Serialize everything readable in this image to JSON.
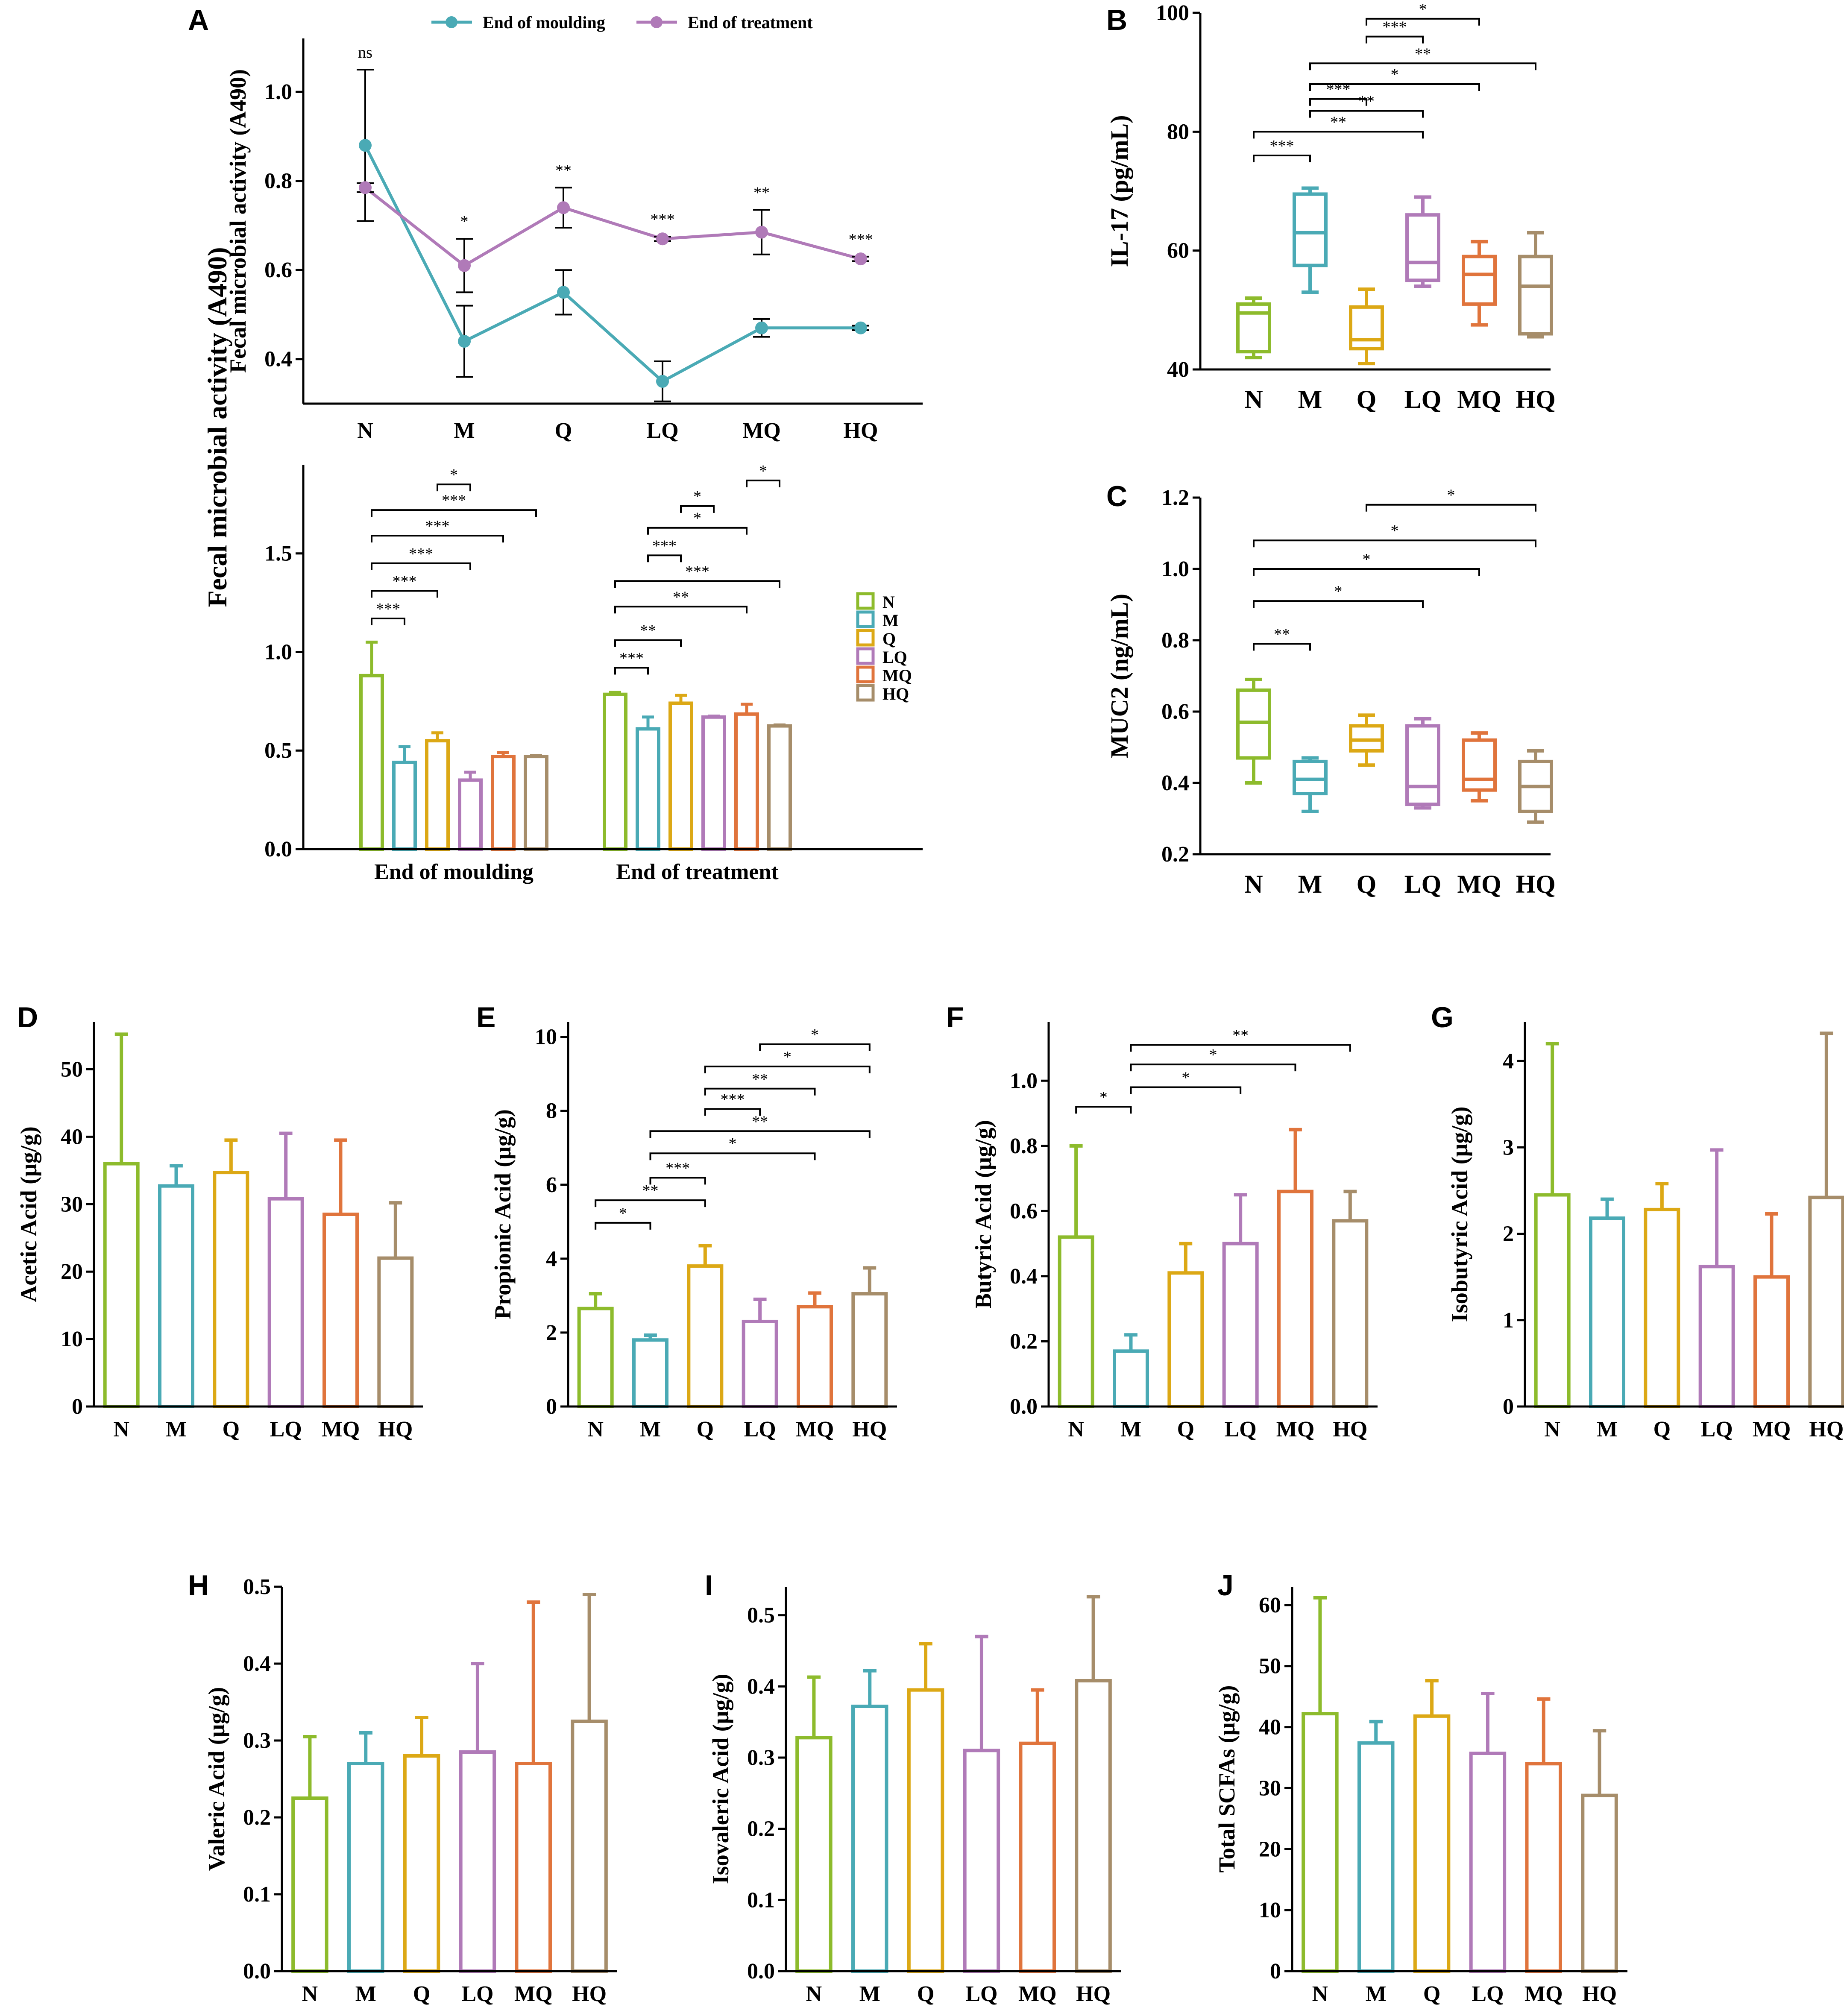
{
  "colors": {
    "N": "#8dbb2c",
    "M": "#4aaab5",
    "Q": "#dca815",
    "LQ": "#b07ab8",
    "MQ": "#e0743c",
    "HQ": "#a68d6a",
    "moulding": "#4aaab5",
    "treatment": "#b07ab8",
    "axis": "#000000"
  },
  "chart_data": [
    {
      "id": "A-line",
      "panel": "A",
      "type": "line",
      "categories": [
        "N",
        "M",
        "Q",
        "LQ",
        "MQ",
        "HQ"
      ],
      "ylabel": "Fecal microbial activity (A490)",
      "yticks": [
        "0.4",
        "0.6",
        "0.8",
        "1.0"
      ],
      "ylim": [
        0.3,
        1.12
      ],
      "legend": [
        "End of moulding",
        "End of treatment"
      ],
      "series": [
        {
          "name": "End of moulding",
          "color": "moulding",
          "values": [
            0.88,
            0.44,
            0.55,
            0.35,
            0.47,
            0.47
          ],
          "err": [
            0.17,
            0.08,
            0.05,
            0.045,
            0.02,
            0.005
          ]
        },
        {
          "name": "End of treatment",
          "color": "treatment",
          "values": [
            0.785,
            0.61,
            0.74,
            0.67,
            0.685,
            0.625
          ],
          "err": [
            0.01,
            0.06,
            0.045,
            0.005,
            0.05,
            0.005
          ]
        }
      ],
      "annotations": [
        "ns",
        "*",
        "**",
        "***",
        "**",
        "***"
      ]
    },
    {
      "id": "A-bar",
      "panel": "",
      "type": "bar",
      "groups": [
        "End of moulding",
        "End of treatment"
      ],
      "categories": [
        "N",
        "M",
        "Q",
        "LQ",
        "MQ",
        "HQ"
      ],
      "yticks": [
        "0.0",
        "0.5",
        "1.0",
        "1.5"
      ],
      "ylim": [
        0,
        1.95
      ],
      "series": [
        {
          "group": "End of moulding",
          "values": [
            0.88,
            0.44,
            0.55,
            0.35,
            0.47,
            0.47
          ],
          "err": [
            0.17,
            0.08,
            0.04,
            0.04,
            0.02,
            0.005
          ]
        },
        {
          "group": "End of treatment",
          "values": [
            0.785,
            0.61,
            0.74,
            0.67,
            0.685,
            0.625
          ],
          "err": [
            0.01,
            0.06,
            0.04,
            0.005,
            0.05,
            0.005
          ]
        }
      ],
      "legend": [
        "N",
        "M",
        "Q",
        "LQ",
        "MQ",
        "HQ"
      ],
      "brackets": [
        {
          "g": 0,
          "a": "N",
          "b": "M",
          "level": 1.17,
          "label": "***"
        },
        {
          "g": 0,
          "a": "N",
          "b": "Q",
          "level": 1.31,
          "label": "***"
        },
        {
          "g": 0,
          "a": "N",
          "b": "LQ",
          "level": 1.45,
          "label": "***"
        },
        {
          "g": 0,
          "a": "N",
          "b": "MQ",
          "level": 1.59,
          "label": "***"
        },
        {
          "g": 0,
          "a": "N",
          "b": "HQ",
          "level": 1.72,
          "label": "***"
        },
        {
          "g": 0,
          "a": "Q",
          "b": "LQ",
          "level": 1.85,
          "label": "*"
        },
        {
          "g": 1,
          "a": "N",
          "b": "M",
          "level": 0.92,
          "label": "***"
        },
        {
          "g": 1,
          "a": "N",
          "b": "Q",
          "level": 1.06,
          "label": "**"
        },
        {
          "g": 1,
          "a": "N",
          "b": "MQ",
          "level": 1.23,
          "label": "**"
        },
        {
          "g": 1,
          "a": "N",
          "b": "HQ",
          "level": 1.36,
          "label": "***"
        },
        {
          "g": 1,
          "a": "M",
          "b": "Q",
          "level": 1.49,
          "label": "***"
        },
        {
          "g": 1,
          "a": "M",
          "b": "MQ",
          "level": 1.63,
          "label": "*"
        },
        {
          "g": 1,
          "a": "Q",
          "b": "LQ",
          "level": 1.74,
          "label": "*"
        },
        {
          "g": 1,
          "a": "MQ",
          "b": "HQ",
          "level": 1.87,
          "label": "*"
        }
      ]
    },
    {
      "id": "B",
      "panel": "B",
      "type": "box",
      "categories": [
        "N",
        "M",
        "Q",
        "LQ",
        "MQ",
        "HQ"
      ],
      "ylabel": "IL-17 (pg/mL)",
      "yticks": [
        "40",
        "60",
        "80",
        "100"
      ],
      "ylim": [
        40,
        100
      ],
      "boxes": [
        [
          42,
          43,
          49.5,
          51,
          52
        ],
        [
          53,
          57.5,
          63,
          69.5,
          70.5
        ],
        [
          41,
          43.5,
          45,
          50.5,
          53.5
        ],
        [
          54,
          55,
          58,
          66,
          69
        ],
        [
          47.5,
          51,
          56,
          59,
          61.5
        ],
        [
          45.5,
          46,
          54,
          59,
          63
        ]
      ],
      "brackets": [
        {
          "a": "N",
          "b": "M",
          "level": 76,
          "label": "***"
        },
        {
          "a": "N",
          "b": "LQ",
          "level": 80,
          "label": "**"
        },
        {
          "a": "M",
          "b": "LQ",
          "level": 83.5,
          "label": "**"
        },
        {
          "a": "M",
          "b": "Q",
          "level": 85.5,
          "label": "***"
        },
        {
          "a": "M",
          "b": "MQ",
          "level": 88,
          "label": "*"
        },
        {
          "a": "M",
          "b": "HQ",
          "level": 91.5,
          "label": "**"
        },
        {
          "a": "Q",
          "b": "LQ",
          "level": 96,
          "label": "***"
        },
        {
          "a": "Q",
          "b": "MQ",
          "level": 99,
          "label": "*"
        }
      ]
    },
    {
      "id": "C",
      "panel": "C",
      "type": "box",
      "categories": [
        "N",
        "M",
        "Q",
        "LQ",
        "MQ",
        "HQ"
      ],
      "ylabel": "MUC2 (ng/mL)",
      "yticks": [
        "0.2",
        "0.4",
        "0.6",
        "0.8",
        "1.0",
        "1.2"
      ],
      "ylim": [
        0.2,
        1.2
      ],
      "boxes": [
        [
          0.4,
          0.47,
          0.57,
          0.66,
          0.69
        ],
        [
          0.32,
          0.37,
          0.41,
          0.46,
          0.47
        ],
        [
          0.45,
          0.49,
          0.52,
          0.56,
          0.59
        ],
        [
          0.33,
          0.34,
          0.39,
          0.56,
          0.58
        ],
        [
          0.35,
          0.38,
          0.41,
          0.52,
          0.54
        ],
        [
          0.29,
          0.32,
          0.39,
          0.46,
          0.49
        ]
      ],
      "brackets": [
        {
          "a": "N",
          "b": "M",
          "level": 0.79,
          "label": "**"
        },
        {
          "a": "N",
          "b": "LQ",
          "level": 0.91,
          "label": "*"
        },
        {
          "a": "N",
          "b": "MQ",
          "level": 1.0,
          "label": "*"
        },
        {
          "a": "N",
          "b": "HQ",
          "level": 1.08,
          "label": "*"
        },
        {
          "a": "Q",
          "b": "HQ",
          "level": 1.18,
          "label": "*"
        }
      ]
    },
    {
      "id": "D",
      "panel": "D",
      "type": "bar",
      "categories": [
        "N",
        "M",
        "Q",
        "LQ",
        "MQ",
        "HQ"
      ],
      "ylabel": "Acetic Acid (μg/g)",
      "yticks": [
        "0",
        "10",
        "20",
        "30",
        "40",
        "50"
      ],
      "ylim": [
        0,
        57
      ],
      "values": [
        36,
        32.7,
        34.7,
        30.8,
        28.5,
        22
      ],
      "err": [
        19.2,
        3,
        4.8,
        9.7,
        11,
        8.2
      ],
      "brackets": []
    },
    {
      "id": "E",
      "panel": "E",
      "type": "bar",
      "categories": [
        "N",
        "M",
        "Q",
        "LQ",
        "MQ",
        "HQ"
      ],
      "ylabel": "Propionic Acid (μg/g)",
      "yticks": [
        "0",
        "2",
        "4",
        "6",
        "8",
        "10"
      ],
      "ylim": [
        0,
        10.4
      ],
      "values": [
        2.65,
        1.8,
        3.8,
        2.3,
        2.7,
        3.05
      ],
      "err": [
        0.4,
        0.13,
        0.55,
        0.6,
        0.37,
        0.7
      ],
      "brackets": [
        {
          "a": "N",
          "b": "M",
          "level": 4.97,
          "label": "*"
        },
        {
          "a": "N",
          "b": "Q",
          "level": 5.58,
          "label": "**"
        },
        {
          "a": "M",
          "b": "Q",
          "level": 6.19,
          "label": "***"
        },
        {
          "a": "M",
          "b": "MQ",
          "level": 6.85,
          "label": "*"
        },
        {
          "a": "M",
          "b": "HQ",
          "level": 7.45,
          "label": "**"
        },
        {
          "a": "Q",
          "b": "LQ",
          "level": 8.05,
          "label": "***"
        },
        {
          "a": "Q",
          "b": "MQ",
          "level": 8.6,
          "label": "**"
        },
        {
          "a": "Q",
          "b": "HQ",
          "level": 9.2,
          "label": "*"
        },
        {
          "a": "LQ",
          "b": "HQ",
          "level": 9.8,
          "label": "*"
        }
      ]
    },
    {
      "id": "F",
      "panel": "F",
      "type": "bar",
      "categories": [
        "N",
        "M",
        "Q",
        "LQ",
        "MQ",
        "HQ"
      ],
      "ylabel": "Butyric Acid (μg/g)",
      "yticks": [
        "0.0",
        "0.2",
        "0.4",
        "0.6",
        "0.8",
        "1.0"
      ],
      "ylim": [
        0,
        1.18
      ],
      "values": [
        0.52,
        0.17,
        0.41,
        0.5,
        0.66,
        0.57
      ],
      "err": [
        0.28,
        0.05,
        0.09,
        0.15,
        0.19,
        0.09
      ],
      "brackets": [
        {
          "a": "N",
          "b": "M",
          "level": 0.92,
          "label": "*"
        },
        {
          "a": "M",
          "b": "LQ",
          "level": 0.98,
          "label": "*"
        },
        {
          "a": "M",
          "b": "MQ",
          "level": 1.05,
          "label": "*"
        },
        {
          "a": "M",
          "b": "HQ",
          "level": 1.11,
          "label": "**"
        }
      ]
    },
    {
      "id": "G",
      "panel": "G",
      "type": "bar",
      "categories": [
        "N",
        "M",
        "Q",
        "LQ",
        "MQ",
        "HQ"
      ],
      "ylabel": "Isobutyric Acid (μg/g)",
      "yticks": [
        "0",
        "1",
        "2",
        "3",
        "4"
      ],
      "ylim": [
        0,
        4.45
      ],
      "values": [
        2.45,
        2.18,
        2.28,
        1.62,
        1.5,
        2.42
      ],
      "err": [
        1.75,
        0.22,
        0.3,
        1.35,
        0.73,
        1.9
      ],
      "brackets": []
    },
    {
      "id": "H",
      "panel": "H",
      "type": "bar",
      "categories": [
        "N",
        "M",
        "Q",
        "LQ",
        "MQ",
        "HQ"
      ],
      "ylabel": "Valeric Acid (μg/g)",
      "yticks": [
        "0.0",
        "0.1",
        "0.2",
        "0.3",
        "0.4",
        "0.5"
      ],
      "ylim": [
        0,
        0.5
      ],
      "values": [
        0.225,
        0.27,
        0.28,
        0.285,
        0.27,
        0.325
      ],
      "err": [
        0.08,
        0.04,
        0.05,
        0.115,
        0.21,
        0.165
      ],
      "brackets": []
    },
    {
      "id": "I",
      "panel": "I",
      "type": "bar",
      "categories": [
        "N",
        "M",
        "Q",
        "LQ",
        "MQ",
        "HQ"
      ],
      "ylabel": "Isovaleric Acid (μg/g)",
      "yticks": [
        "0.0",
        "0.1",
        "0.2",
        "0.3",
        "0.4",
        "0.5"
      ],
      "ylim": [
        0,
        0.54
      ],
      "values": [
        0.328,
        0.372,
        0.395,
        0.31,
        0.32,
        0.408
      ],
      "err": [
        0.085,
        0.05,
        0.065,
        0.16,
        0.075,
        0.118
      ],
      "brackets": []
    },
    {
      "id": "J",
      "panel": "J",
      "type": "bar",
      "categories": [
        "N",
        "M",
        "Q",
        "LQ",
        "MQ",
        "HQ"
      ],
      "ylabel": "Total SCFAs (μg/g)",
      "yticks": [
        "0",
        "10",
        "20",
        "30",
        "40",
        "50",
        "60"
      ],
      "ylim": [
        0,
        63
      ],
      "values": [
        42.2,
        37.4,
        41.8,
        35.7,
        34,
        28.8
      ],
      "err": [
        19,
        3.5,
        5.8,
        9.8,
        10.6,
        10.6
      ],
      "brackets": []
    }
  ]
}
